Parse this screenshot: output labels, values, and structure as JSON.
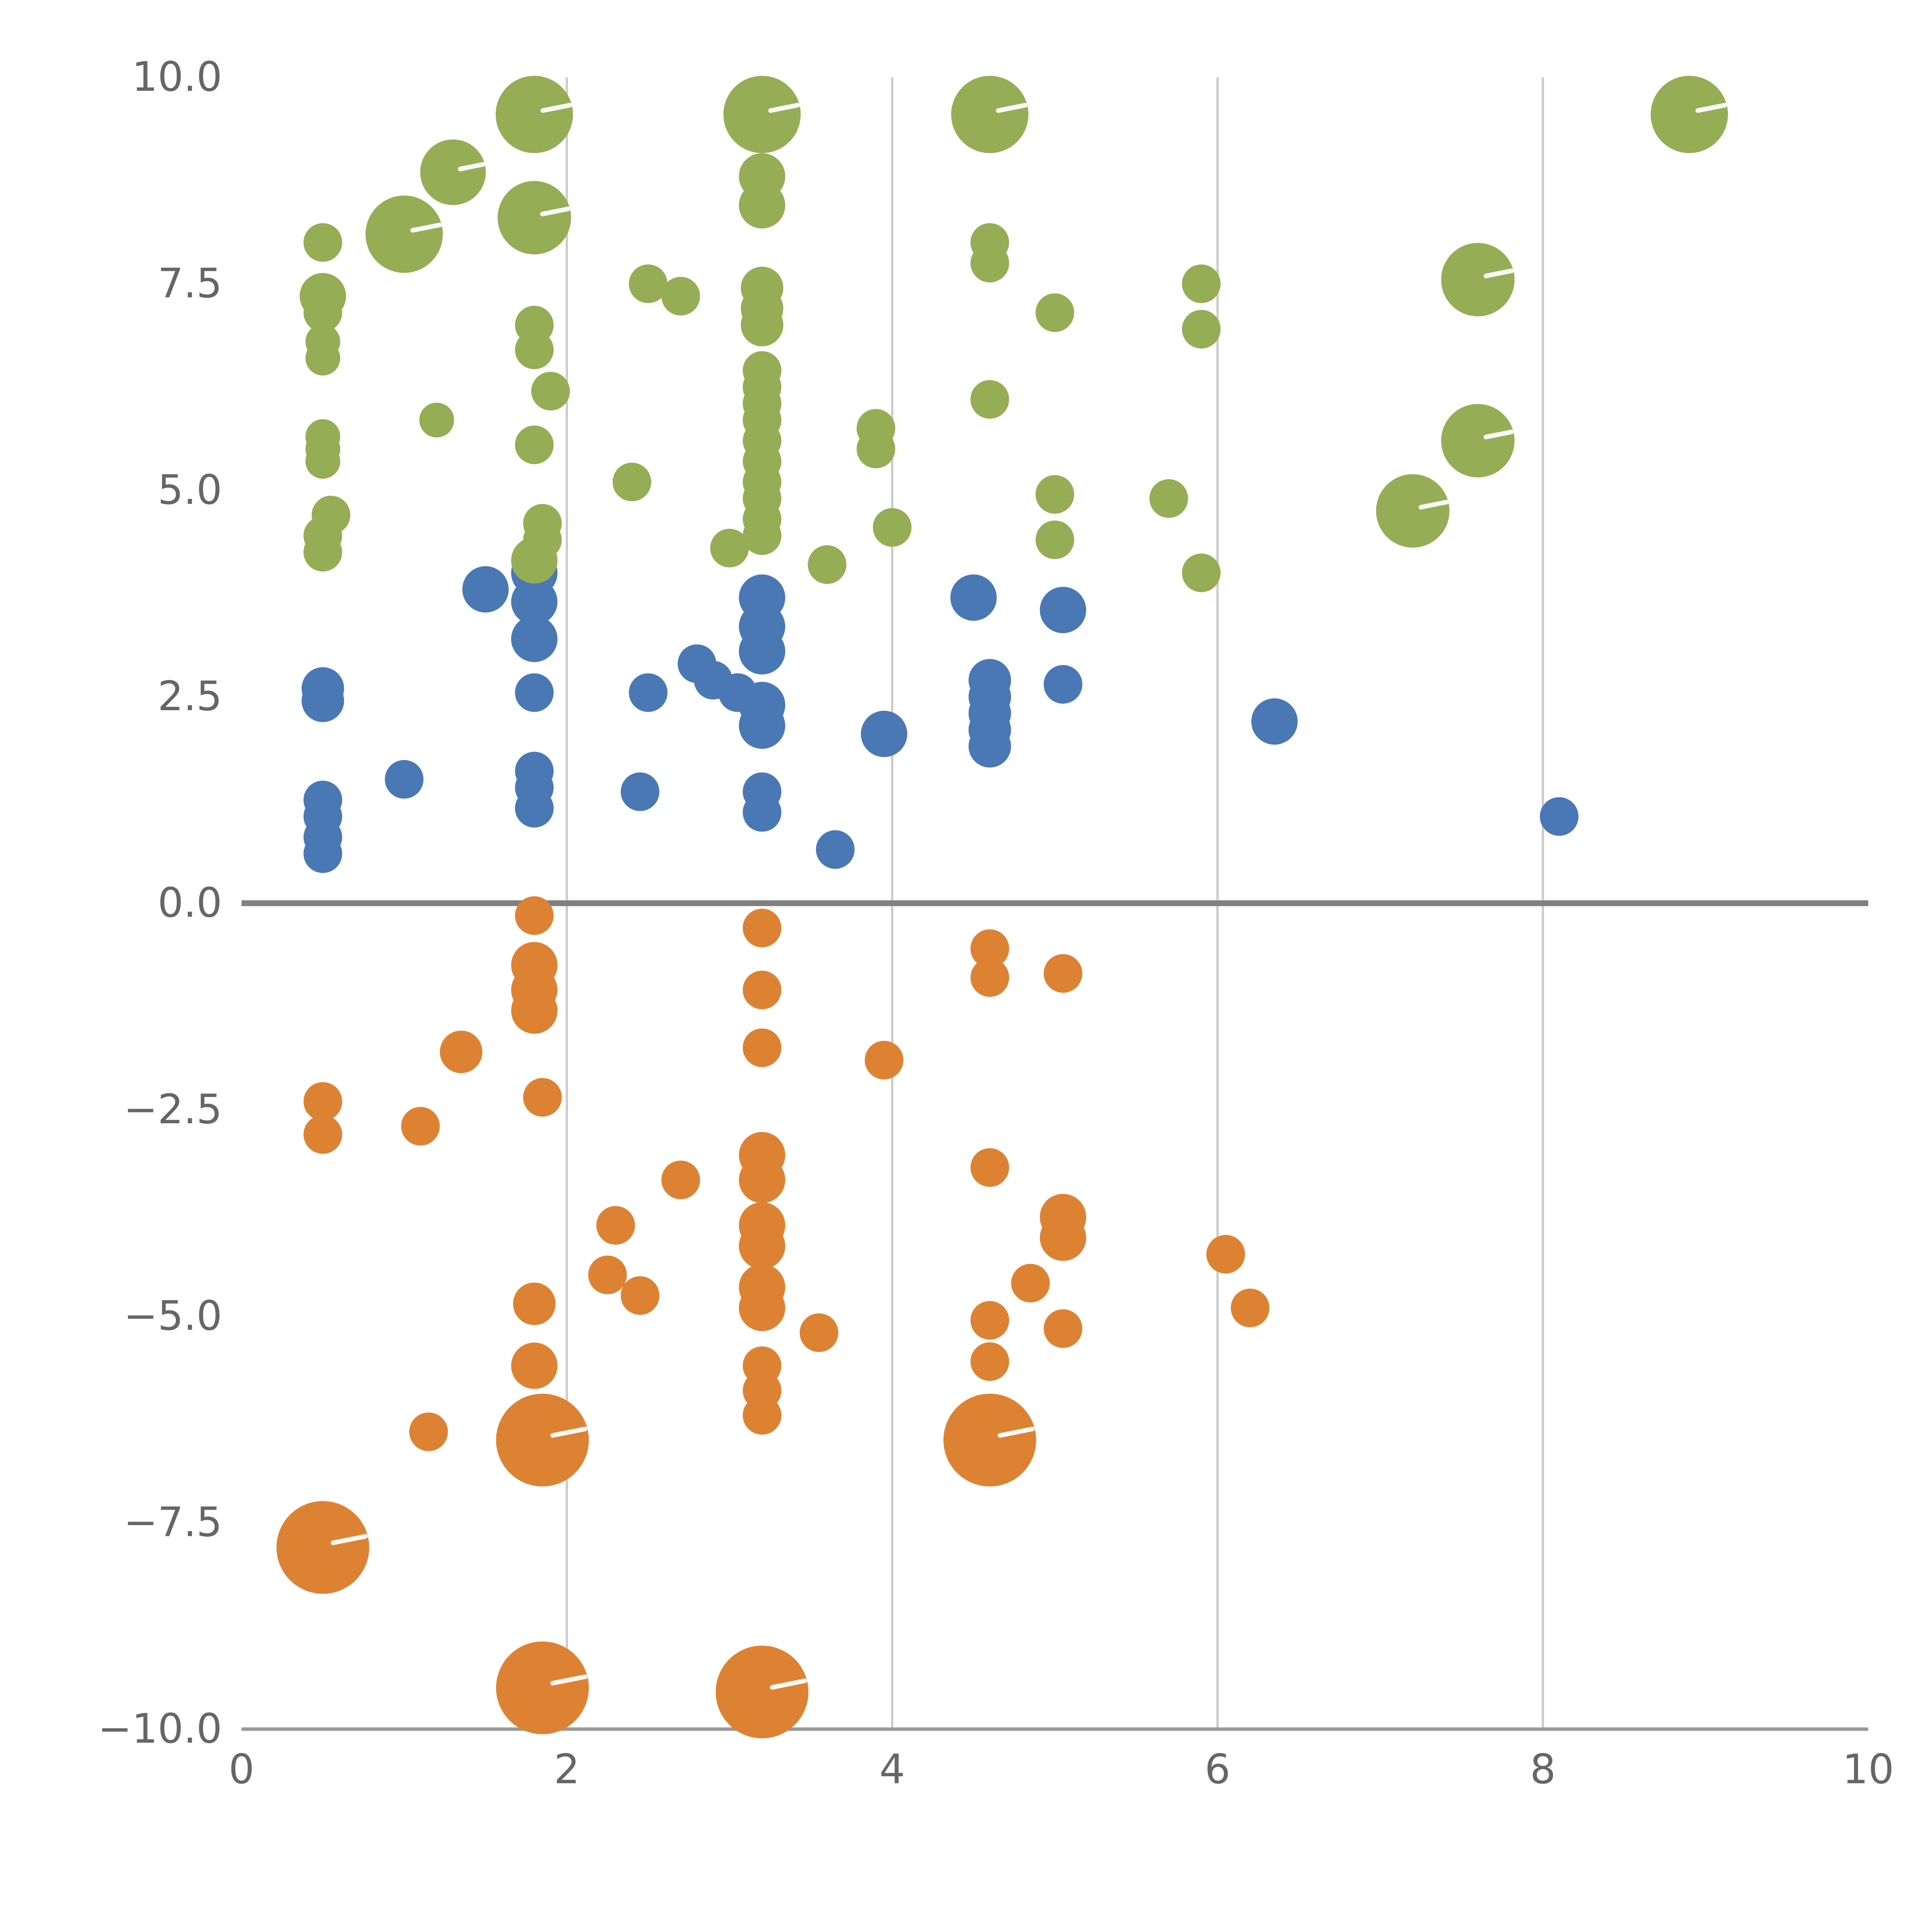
{
  "figure": {
    "background": "#ffffff"
  },
  "chart_data": {
    "type": "scatter",
    "title": "",
    "xlabel": "",
    "ylabel": "",
    "xlim": [
      0,
      10
    ],
    "ylim": [
      -10,
      10
    ],
    "grid": {
      "vertical_lines_at": [
        2,
        4,
        6,
        8
      ],
      "color": "#cccccc"
    },
    "zero_line": {
      "y": 0,
      "color": "#808080"
    },
    "axis": {
      "spine_color": "#999999",
      "tick_label_color": "#666666",
      "x_ticks": [
        0,
        2,
        4,
        6,
        8,
        10
      ],
      "x_tick_labels": [
        "0",
        "2",
        "4",
        "6",
        "8",
        "10"
      ],
      "y_ticks": [
        -10,
        -7.5,
        -5,
        -2.5,
        0,
        2.5,
        5,
        7.5,
        10
      ],
      "y_tick_labels": [
        "−10.0",
        "−7.5",
        "−5.0",
        "−2.5",
        "0.0",
        "2.5",
        "5.0",
        "7.5",
        "10.0"
      ]
    },
    "legend": null,
    "series": [
      {
        "name": "blue",
        "color": "#4a78b5",
        "points": [
          [
            1.5,
            3.8,
            12
          ],
          [
            1.8,
            4.0,
            12
          ],
          [
            1.8,
            3.65,
            12
          ],
          [
            1.8,
            3.2,
            12
          ],
          [
            1.8,
            2.55,
            10
          ],
          [
            3.2,
            3.7,
            12
          ],
          [
            3.2,
            3.35,
            12
          ],
          [
            3.2,
            3.05,
            12
          ],
          [
            2.8,
            2.9,
            10
          ],
          [
            2.9,
            2.7,
            10
          ],
          [
            3.05,
            2.55,
            10
          ],
          [
            3.2,
            2.4,
            12
          ],
          [
            3.2,
            2.15,
            12
          ],
          [
            2.5,
            2.55,
            10
          ],
          [
            4.5,
            3.7,
            12
          ],
          [
            5.05,
            3.55,
            12
          ],
          [
            4.6,
            2.7,
            11
          ],
          [
            4.6,
            2.5,
            11
          ],
          [
            4.6,
            2.3,
            11
          ],
          [
            4.6,
            2.1,
            11
          ],
          [
            4.6,
            1.9,
            11
          ],
          [
            5.05,
            2.65,
            10
          ],
          [
            3.95,
            2.05,
            12
          ],
          [
            6.35,
            2.2,
            12
          ],
          [
            0.5,
            2.6,
            11
          ],
          [
            0.5,
            2.45,
            11
          ],
          [
            1.0,
            1.5,
            10
          ],
          [
            1.8,
            1.6,
            10
          ],
          [
            1.8,
            1.4,
            10
          ],
          [
            1.8,
            1.15,
            10
          ],
          [
            2.45,
            1.35,
            10
          ],
          [
            3.2,
            1.35,
            10
          ],
          [
            3.2,
            1.1,
            10
          ],
          [
            0.5,
            1.25,
            10
          ],
          [
            0.5,
            1.05,
            10
          ],
          [
            0.5,
            0.8,
            10
          ],
          [
            0.5,
            0.6,
            10
          ],
          [
            3.65,
            0.65,
            10
          ],
          [
            8.1,
            1.05,
            10
          ]
        ]
      },
      {
        "name": "orange",
        "color": "#dd8233",
        "points": [
          [
            1.8,
            -0.15,
            10
          ],
          [
            1.8,
            -0.75,
            12
          ],
          [
            1.8,
            -1.05,
            12
          ],
          [
            1.8,
            -1.3,
            12
          ],
          [
            3.2,
            -0.3,
            10
          ],
          [
            3.2,
            -1.05,
            10
          ],
          [
            3.2,
            -1.75,
            10
          ],
          [
            4.6,
            -0.55,
            10
          ],
          [
            4.6,
            -0.9,
            10
          ],
          [
            5.05,
            -0.85,
            10
          ],
          [
            1.35,
            -1.8,
            11
          ],
          [
            0.5,
            -2.4,
            10
          ],
          [
            0.5,
            -2.8,
            10
          ],
          [
            1.1,
            -2.7,
            10
          ],
          [
            1.85,
            -2.35,
            10
          ],
          [
            3.95,
            -1.9,
            10
          ],
          [
            2.7,
            -3.35,
            10
          ],
          [
            3.2,
            -3.05,
            12
          ],
          [
            3.2,
            -3.35,
            12
          ],
          [
            4.6,
            -3.2,
            10
          ],
          [
            2.3,
            -3.9,
            10
          ],
          [
            3.2,
            -3.9,
            12
          ],
          [
            3.2,
            -4.15,
            12
          ],
          [
            2.25,
            -4.5,
            10
          ],
          [
            2.45,
            -4.75,
            10
          ],
          [
            1.8,
            -4.85,
            11
          ],
          [
            3.2,
            -4.65,
            12
          ],
          [
            3.2,
            -4.9,
            12
          ],
          [
            4.85,
            -4.6,
            10
          ],
          [
            5.05,
            -3.8,
            12
          ],
          [
            5.05,
            -4.05,
            12
          ],
          [
            6.05,
            -4.25,
            10
          ],
          [
            6.2,
            -4.9,
            10
          ],
          [
            3.55,
            -5.2,
            10
          ],
          [
            4.6,
            -5.05,
            10
          ],
          [
            4.6,
            -5.55,
            10
          ],
          [
            5.05,
            -5.15,
            10
          ],
          [
            1.8,
            -5.6,
            12
          ],
          [
            3.2,
            -5.6,
            10
          ],
          [
            3.2,
            -5.9,
            10
          ],
          [
            3.2,
            -6.2,
            10
          ],
          [
            1.15,
            -6.4,
            10
          ],
          [
            1.85,
            -6.5,
            24
          ],
          [
            4.6,
            -6.5,
            24
          ],
          [
            0.5,
            -7.8,
            24
          ],
          [
            1.85,
            -9.5,
            24
          ],
          [
            3.2,
            -9.55,
            24
          ]
        ]
      },
      {
        "name": "green",
        "color": "#95ad55",
        "points": [
          [
            1.8,
            9.55,
            20
          ],
          [
            3.2,
            9.55,
            20
          ],
          [
            4.6,
            9.55,
            20
          ],
          [
            8.9,
            9.55,
            20
          ],
          [
            1.3,
            8.85,
            17
          ],
          [
            1.0,
            8.1,
            20
          ],
          [
            1.8,
            8.3,
            19
          ],
          [
            0.5,
            8.0,
            10
          ],
          [
            3.2,
            8.8,
            12
          ],
          [
            3.2,
            8.45,
            12
          ],
          [
            4.6,
            8.0,
            10
          ],
          [
            4.6,
            7.75,
            10
          ],
          [
            0.5,
            7.35,
            12
          ],
          [
            0.5,
            7.15,
            10
          ],
          [
            2.5,
            7.5,
            10
          ],
          [
            2.7,
            7.35,
            10
          ],
          [
            3.2,
            7.45,
            11
          ],
          [
            3.2,
            7.2,
            11
          ],
          [
            3.2,
            7.0,
            11
          ],
          [
            5.0,
            7.15,
            10
          ],
          [
            5.9,
            7.5,
            10
          ],
          [
            5.9,
            6.95,
            10
          ],
          [
            7.6,
            7.55,
            19
          ],
          [
            0.5,
            6.8,
            9
          ],
          [
            0.5,
            6.6,
            9
          ],
          [
            1.8,
            7.0,
            10
          ],
          [
            1.8,
            6.7,
            10
          ],
          [
            1.9,
            6.2,
            10
          ],
          [
            1.2,
            5.85,
            9
          ],
          [
            3.2,
            6.45,
            10
          ],
          [
            3.2,
            6.25,
            10
          ],
          [
            3.2,
            6.05,
            10
          ],
          [
            3.2,
            5.85,
            10
          ],
          [
            3.2,
            5.6,
            10
          ],
          [
            3.2,
            5.35,
            10
          ],
          [
            3.2,
            5.1,
            10
          ],
          [
            3.2,
            4.9,
            10
          ],
          [
            3.2,
            4.65,
            10
          ],
          [
            3.2,
            4.45,
            10
          ],
          [
            0.5,
            5.65,
            9
          ],
          [
            0.5,
            5.5,
            9
          ],
          [
            0.5,
            5.35,
            9
          ],
          [
            1.8,
            5.55,
            10
          ],
          [
            2.4,
            5.1,
            10
          ],
          [
            3.9,
            5.75,
            10
          ],
          [
            3.9,
            5.5,
            10
          ],
          [
            4.6,
            6.1,
            10
          ],
          [
            5.0,
            4.95,
            10
          ],
          [
            5.7,
            4.9,
            10
          ],
          [
            7.2,
            4.75,
            19
          ],
          [
            7.6,
            5.6,
            19
          ],
          [
            5.9,
            4.0,
            10
          ],
          [
            3.6,
            4.1,
            10
          ],
          [
            3.0,
            4.3,
            10
          ],
          [
            4.0,
            4.55,
            10
          ],
          [
            5.0,
            4.4,
            10
          ],
          [
            0.55,
            4.7,
            10
          ],
          [
            0.5,
            4.45,
            10
          ],
          [
            0.5,
            4.25,
            10
          ],
          [
            1.85,
            4.6,
            10
          ],
          [
            1.85,
            4.4,
            10
          ],
          [
            1.8,
            4.15,
            12
          ]
        ]
      }
    ]
  }
}
